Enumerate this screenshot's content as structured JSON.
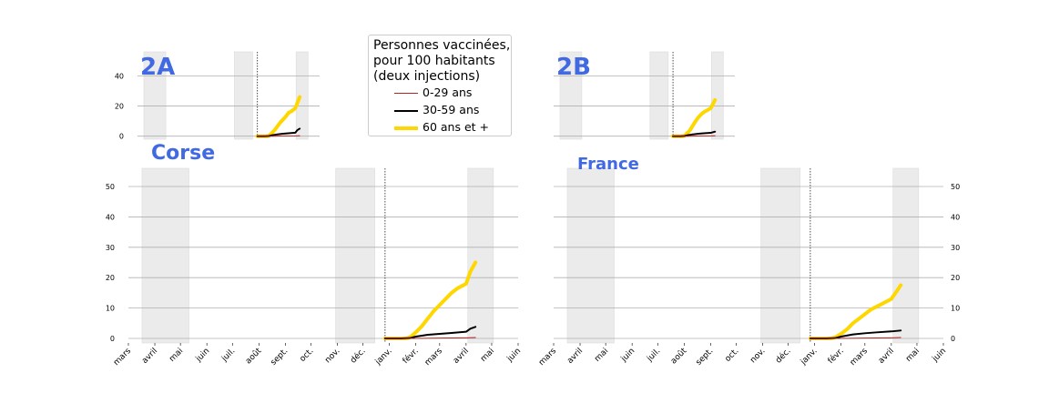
{
  "legend": {
    "title_lines": [
      "Personnes vaccinées,",
      "pour 100 habitants",
      "(deux injections)"
    ],
    "items": [
      {
        "label": "0-29 ans",
        "color": "#b22222"
      },
      {
        "label": "30-59 ans",
        "color": "#000000"
      },
      {
        "label": "60 ans et +",
        "color": "#ffd700"
      }
    ]
  },
  "colors": {
    "title": "#4169e1",
    "shade": "#ebebeb",
    "grid": "#b0b0b0"
  },
  "chart_data": [
    {
      "type": "line",
      "title": "2A",
      "x_tick_labels": [],
      "y_ticks": [
        0,
        20,
        40
      ],
      "ylim": [
        -2,
        56
      ],
      "xlim": [
        "2020-03-01",
        "2021-06-01"
      ],
      "grid": "horizontal",
      "shaded_periods": [
        [
          "2020-03-17",
          "2020-05-11"
        ],
        [
          "2020-10-30",
          "2020-12-15"
        ],
        [
          "2021-04-03",
          "2021-05-03"
        ]
      ],
      "vline": "2020-12-27",
      "series": [
        {
          "name": "0-29 ans",
          "x": [
            "2020-12-27",
            "2021-01-15",
            "2021-02-01",
            "2021-03-01",
            "2021-04-01",
            "2021-04-12"
          ],
          "values": [
            0,
            0,
            0,
            0.1,
            0.2,
            0.3
          ]
        },
        {
          "name": "30-59 ans",
          "x": [
            "2020-12-27",
            "2021-01-15",
            "2021-01-25",
            "2021-02-01",
            "2021-02-15",
            "2021-03-01",
            "2021-03-15",
            "2021-04-01",
            "2021-04-06",
            "2021-04-12"
          ],
          "values": [
            0,
            0,
            0.1,
            0.6,
            1.2,
            1.6,
            1.9,
            2.3,
            4.0,
            5.0
          ]
        },
        {
          "name": "60 ans et +",
          "x": [
            "2020-12-27",
            "2021-01-10",
            "2021-01-20",
            "2021-01-25",
            "2021-02-01",
            "2021-02-08",
            "2021-02-15",
            "2021-02-22",
            "2021-03-01",
            "2021-03-08",
            "2021-03-15",
            "2021-03-22",
            "2021-04-01",
            "2021-04-06",
            "2021-04-12"
          ],
          "values": [
            0,
            0,
            0,
            0.3,
            2,
            4,
            6.5,
            9,
            11,
            13,
            15.5,
            16.5,
            18.5,
            22,
            26
          ]
        }
      ]
    },
    {
      "type": "line",
      "title": "2B",
      "x_tick_labels": [],
      "y_ticks": [
        0,
        20,
        40
      ],
      "ylim": [
        -2,
        56
      ],
      "xlim": [
        "2020-03-01",
        "2021-06-01"
      ],
      "grid": "horizontal",
      "shaded_periods": [
        [
          "2020-03-17",
          "2020-05-11"
        ],
        [
          "2020-10-30",
          "2020-12-15"
        ],
        [
          "2021-04-03",
          "2021-05-03"
        ]
      ],
      "vline": "2020-12-27",
      "series": [
        {
          "name": "0-29 ans",
          "x": [
            "2020-12-27",
            "2021-01-15",
            "2021-02-01",
            "2021-03-01",
            "2021-04-01",
            "2021-04-12"
          ],
          "values": [
            0,
            0,
            0,
            0.1,
            0.2,
            0.3
          ]
        },
        {
          "name": "30-59 ans",
          "x": [
            "2020-12-27",
            "2021-01-15",
            "2021-01-25",
            "2021-02-01",
            "2021-02-15",
            "2021-03-01",
            "2021-03-15",
            "2021-04-01",
            "2021-04-12"
          ],
          "values": [
            0,
            0,
            0.1,
            0.6,
            1.2,
            1.6,
            1.9,
            2.2,
            3.0
          ]
        },
        {
          "name": "60 ans et +",
          "x": [
            "2020-12-27",
            "2021-01-10",
            "2021-01-20",
            "2021-01-25",
            "2021-02-01",
            "2021-02-08",
            "2021-02-15",
            "2021-02-22",
            "2021-03-01",
            "2021-03-08",
            "2021-03-15",
            "2021-03-22",
            "2021-04-01",
            "2021-04-06",
            "2021-04-12"
          ],
          "values": [
            0,
            0,
            0,
            0.3,
            2,
            4,
            7,
            10,
            12.5,
            14.5,
            16,
            17,
            18.5,
            21,
            24
          ]
        }
      ]
    },
    {
      "type": "line",
      "title": "Corse",
      "x_tick_labels": [
        "mars",
        "avril",
        "mai",
        "juin",
        "juil.",
        "août",
        "sept.",
        "oct.",
        "nov.",
        "déc.",
        "janv.",
        "févr.",
        "mars",
        "avril",
        "mai",
        "juin"
      ],
      "y_ticks": [
        0,
        10,
        20,
        30,
        40,
        50
      ],
      "ylim": [
        -1.5,
        56
      ],
      "xlim": [
        "2020-03-01",
        "2021-06-01"
      ],
      "grid": "horizontal",
      "shaded_periods": [
        [
          "2020-03-17",
          "2020-05-11"
        ],
        [
          "2020-10-30",
          "2020-12-15"
        ],
        [
          "2021-04-03",
          "2021-05-03"
        ]
      ],
      "vline": "2020-12-27",
      "series": [
        {
          "name": "0-29 ans",
          "x": [
            "2020-12-27",
            "2021-01-15",
            "2021-02-01",
            "2021-03-01",
            "2021-04-01",
            "2021-04-12"
          ],
          "values": [
            0,
            0,
            0,
            0.1,
            0.2,
            0.3
          ]
        },
        {
          "name": "30-59 ans",
          "x": [
            "2020-12-27",
            "2021-01-15",
            "2021-01-25",
            "2021-02-01",
            "2021-02-15",
            "2021-03-01",
            "2021-03-15",
            "2021-04-01",
            "2021-04-06",
            "2021-04-12"
          ],
          "values": [
            0,
            0,
            0.1,
            0.6,
            1.2,
            1.5,
            1.8,
            2.2,
            3.2,
            3.8
          ]
        },
        {
          "name": "60 ans et +",
          "x": [
            "2020-12-27",
            "2021-01-10",
            "2021-01-20",
            "2021-01-25",
            "2021-02-01",
            "2021-02-08",
            "2021-02-15",
            "2021-02-22",
            "2021-03-01",
            "2021-03-08",
            "2021-03-15",
            "2021-03-22",
            "2021-04-01",
            "2021-04-06",
            "2021-04-12"
          ],
          "values": [
            0,
            0,
            0,
            0.3,
            2,
            4,
            6.5,
            9,
            11,
            13,
            15,
            16.5,
            18,
            22,
            25
          ]
        }
      ]
    },
    {
      "type": "line",
      "title": "France",
      "x_tick_labels": [
        "mars",
        "avril",
        "mai",
        "juin",
        "juil.",
        "août",
        "sept.",
        "oct.",
        "nov.",
        "déc.",
        "janv.",
        "févr.",
        "mars",
        "avril",
        "mai",
        "juin"
      ],
      "y_ticks": [
        0,
        10,
        20,
        30,
        40,
        50
      ],
      "ylim": [
        -1.5,
        56
      ],
      "xlim": [
        "2020-03-01",
        "2021-06-01"
      ],
      "grid": "horizontal",
      "shaded_periods": [
        [
          "2020-03-17",
          "2020-05-11"
        ],
        [
          "2020-10-30",
          "2020-12-15"
        ],
        [
          "2021-04-03",
          "2021-05-03"
        ]
      ],
      "vline": "2020-12-27",
      "series": [
        {
          "name": "0-29 ans",
          "x": [
            "2020-12-27",
            "2021-01-15",
            "2021-02-01",
            "2021-03-01",
            "2021-04-01",
            "2021-04-12"
          ],
          "values": [
            0,
            0,
            0,
            0.1,
            0.2,
            0.3
          ]
        },
        {
          "name": "30-59 ans",
          "x": [
            "2020-12-27",
            "2021-01-15",
            "2021-01-25",
            "2021-02-01",
            "2021-02-15",
            "2021-03-01",
            "2021-03-15",
            "2021-04-01",
            "2021-04-12"
          ],
          "values": [
            0,
            0,
            0.1,
            0.6,
            1.3,
            1.7,
            2.0,
            2.3,
            2.6
          ]
        },
        {
          "name": "60 ans et +",
          "x": [
            "2020-12-27",
            "2021-01-10",
            "2021-01-20",
            "2021-01-25",
            "2021-02-01",
            "2021-02-08",
            "2021-02-15",
            "2021-02-22",
            "2021-03-01",
            "2021-03-08",
            "2021-03-15",
            "2021-03-22",
            "2021-04-01",
            "2021-04-06",
            "2021-04-12"
          ],
          "values": [
            0,
            0,
            0,
            0.3,
            1.5,
            3,
            5,
            6.5,
            8,
            9.5,
            10.5,
            11.5,
            13,
            15,
            17.5
          ]
        }
      ]
    }
  ]
}
